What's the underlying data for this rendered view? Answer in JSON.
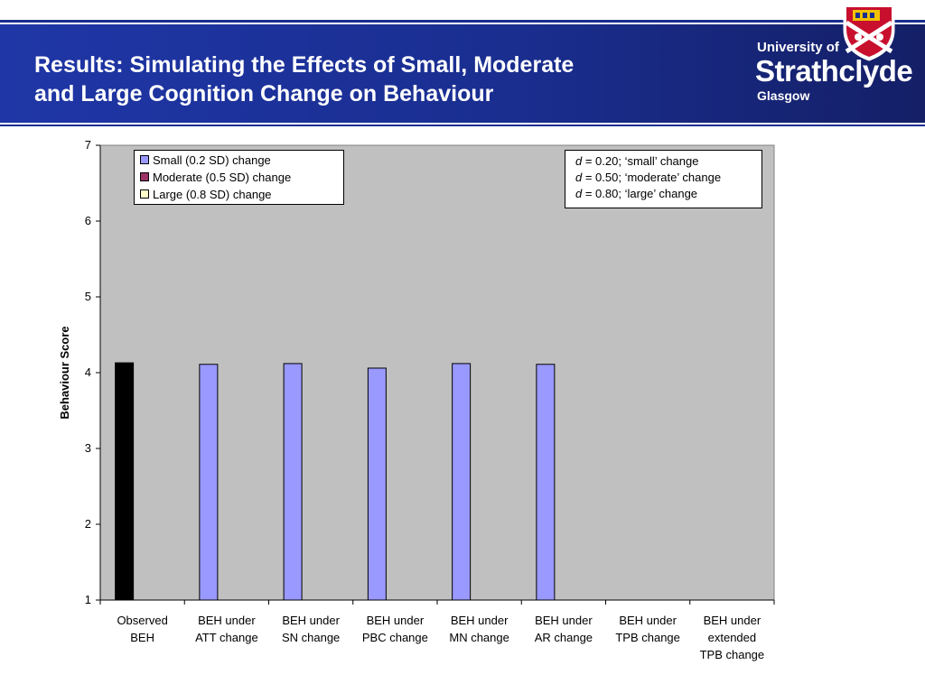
{
  "header": {
    "title": "Results: Simulating the Effects of Small, Moderate\nand Large Cognition Change on Behaviour",
    "logo": {
      "line1": "University of",
      "line2": "Strathclyde",
      "line3": "Glasgow"
    }
  },
  "colors": {
    "header_blue": "#1a2e8f",
    "plot_bg": "#c0c0c0",
    "observed": "#000000",
    "small": "#9999ff",
    "moderate": "#993366",
    "large": "#ffffcc"
  },
  "chart_data": {
    "type": "bar",
    "title": "",
    "xlabel": "",
    "ylabel": "Behaviour Score",
    "ylim": [
      1,
      7
    ],
    "yticks": [
      1,
      2,
      3,
      4,
      5,
      6,
      7
    ],
    "grid": false,
    "legend_position": "top-left",
    "categories": [
      "Observed\nBEH",
      "BEH under\nATT change",
      "BEH under\nSN change",
      "BEH under\nPBC change",
      "BEH under\nMN change",
      "BEH under\nAR change",
      "BEH under\nTPB change",
      "BEH under\nextended\nTPB change"
    ],
    "observed": {
      "category": "Observed\nBEH",
      "value": 4.13
    },
    "series": [
      {
        "name": "Small (0.2 SD) change",
        "values": [
          null,
          4.11,
          4.12,
          4.06,
          4.12,
          4.11,
          null,
          null
        ]
      },
      {
        "name": "Moderate (0.5 SD) change",
        "values": [
          null,
          null,
          null,
          null,
          null,
          null,
          null,
          null
        ]
      },
      {
        "name": "Large (0.8 SD) change",
        "values": [
          null,
          null,
          null,
          null,
          null,
          null,
          null,
          null
        ]
      }
    ],
    "annotation": [
      {
        "symbol": "d",
        "text": " = 0.20; ‘small’ change"
      },
      {
        "symbol": "d",
        "text": " = 0.50; ‘moderate’ change"
      },
      {
        "symbol": "d",
        "text": " = 0.80; ‘large’ change"
      }
    ]
  }
}
